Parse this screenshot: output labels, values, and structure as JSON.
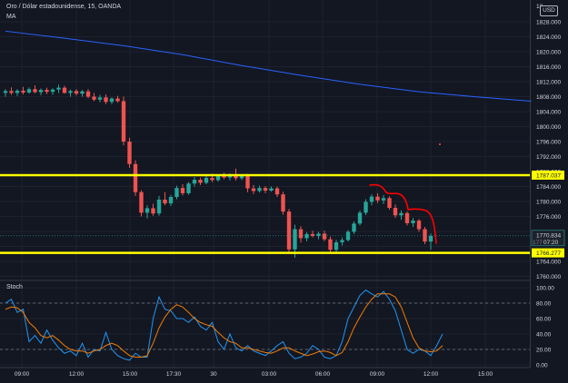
{
  "header": {
    "symbol_title": "Oro / Dólar estadounidense, 15, OANDA",
    "ma_label": "MA",
    "currency_button": "USD",
    "top_clipped_label": "18"
  },
  "stoch_panel": {
    "label": "Stoch"
  },
  "price_tags": {
    "upper_line": "1787.037",
    "current_price": "1770.834",
    "countdown": "07:20",
    "countdown_prefix": "177",
    "lower_line": "1766.277"
  },
  "colors": {
    "background": "#131722",
    "bull": "#26a69a",
    "bear": "#ef5350",
    "ma": "#2962ff",
    "stoch_k": "#2196f3",
    "stoch_d": "#f57c00",
    "level_line": "#ffff00",
    "hand_drawn": "#ff0000"
  },
  "chart_data": [
    {
      "type": "candlestick",
      "title": "Oro / Dólar estadounidense, 15, OANDA",
      "ylim": [
        1760,
        1832
      ],
      "y_ticks": [
        "1828.000",
        "1824.000",
        "1820.000",
        "1816.000",
        "1812.000",
        "1808.000",
        "1804.000",
        "1800.000",
        "1796.000",
        "1792.000",
        "1788.000",
        "1784.000",
        "1780.000",
        "1776.000",
        "1764.000",
        "1760.000"
      ],
      "x_ticks": [
        "09:00",
        "12:00",
        "15:00",
        "17:30",
        "30",
        "03:00",
        "06:00",
        "09:00",
        "12:00",
        "15:00"
      ],
      "horizontal_levels": [
        1787.037,
        1766.277
      ],
      "current_price": 1770.834,
      "ma_series": {
        "name": "MA",
        "points": [
          [
            0,
            1825.5
          ],
          [
            10,
            1823.6
          ],
          [
            20,
            1821.6
          ],
          [
            30,
            1819.2
          ],
          [
            40,
            1816.3
          ],
          [
            50,
            1813.7
          ],
          [
            60,
            1811.3
          ],
          [
            70,
            1809.3
          ],
          [
            80,
            1807.9
          ],
          [
            89,
            1806.8
          ]
        ]
      },
      "candles": [
        {
          "o": 1809.0,
          "h": 1810.0,
          "l": 1808.0,
          "c": 1809.5
        },
        {
          "o": 1809.5,
          "h": 1810.5,
          "l": 1808.5,
          "c": 1809.0
        },
        {
          "o": 1809.0,
          "h": 1810.0,
          "l": 1808.2,
          "c": 1809.6
        },
        {
          "o": 1809.6,
          "h": 1810.6,
          "l": 1808.6,
          "c": 1809.1
        },
        {
          "o": 1809.1,
          "h": 1810.5,
          "l": 1808.8,
          "c": 1810.0
        },
        {
          "o": 1810.0,
          "h": 1811.0,
          "l": 1808.9,
          "c": 1809.2
        },
        {
          "o": 1809.2,
          "h": 1810.2,
          "l": 1808.4,
          "c": 1809.8
        },
        {
          "o": 1809.8,
          "h": 1810.4,
          "l": 1808.7,
          "c": 1809.3
        },
        {
          "o": 1809.3,
          "h": 1810.2,
          "l": 1808.5,
          "c": 1809.9
        },
        {
          "o": 1809.9,
          "h": 1811.2,
          "l": 1809.0,
          "c": 1810.4
        },
        {
          "o": 1810.4,
          "h": 1810.9,
          "l": 1808.8,
          "c": 1809.0
        },
        {
          "o": 1809.0,
          "h": 1809.9,
          "l": 1808.0,
          "c": 1809.5
        },
        {
          "o": 1809.5,
          "h": 1810.0,
          "l": 1808.3,
          "c": 1808.8
        },
        {
          "o": 1808.8,
          "h": 1809.8,
          "l": 1808.0,
          "c": 1809.4
        },
        {
          "o": 1809.4,
          "h": 1810.0,
          "l": 1807.6,
          "c": 1808.0
        },
        {
          "o": 1808.0,
          "h": 1809.0,
          "l": 1806.8,
          "c": 1807.2
        },
        {
          "o": 1807.2,
          "h": 1808.5,
          "l": 1806.5,
          "c": 1807.8
        },
        {
          "o": 1807.8,
          "h": 1808.6,
          "l": 1806.0,
          "c": 1806.6
        },
        {
          "o": 1806.6,
          "h": 1807.8,
          "l": 1806.0,
          "c": 1807.5
        },
        {
          "o": 1807.5,
          "h": 1808.2,
          "l": 1806.4,
          "c": 1806.8
        },
        {
          "o": 1806.8,
          "h": 1808.0,
          "l": 1795.0,
          "c": 1796.0
        },
        {
          "o": 1796.0,
          "h": 1797.0,
          "l": 1789.0,
          "c": 1790.0
        },
        {
          "o": 1790.0,
          "h": 1791.0,
          "l": 1781.5,
          "c": 1782.5
        },
        {
          "o": 1782.5,
          "h": 1783.0,
          "l": 1776.0,
          "c": 1777.0
        },
        {
          "o": 1777.0,
          "h": 1779.0,
          "l": 1775.5,
          "c": 1778.2
        },
        {
          "o": 1778.2,
          "h": 1779.4,
          "l": 1776.2,
          "c": 1776.8
        },
        {
          "o": 1776.8,
          "h": 1781.5,
          "l": 1776.2,
          "c": 1780.5
        },
        {
          "o": 1780.5,
          "h": 1782.5,
          "l": 1779.0,
          "c": 1779.5
        },
        {
          "o": 1779.5,
          "h": 1781.8,
          "l": 1778.8,
          "c": 1781.2
        },
        {
          "o": 1781.2,
          "h": 1784.2,
          "l": 1780.6,
          "c": 1783.6
        },
        {
          "o": 1783.6,
          "h": 1784.6,
          "l": 1781.6,
          "c": 1782.2
        },
        {
          "o": 1782.2,
          "h": 1785.2,
          "l": 1781.8,
          "c": 1784.8
        },
        {
          "o": 1784.8,
          "h": 1786.5,
          "l": 1784.0,
          "c": 1785.8
        },
        {
          "o": 1785.8,
          "h": 1786.4,
          "l": 1784.4,
          "c": 1785.0
        },
        {
          "o": 1785.0,
          "h": 1786.8,
          "l": 1784.6,
          "c": 1786.3
        },
        {
          "o": 1786.3,
          "h": 1787.4,
          "l": 1785.2,
          "c": 1785.7
        },
        {
          "o": 1785.7,
          "h": 1787.2,
          "l": 1785.3,
          "c": 1786.8
        },
        {
          "o": 1786.8,
          "h": 1787.7,
          "l": 1785.9,
          "c": 1786.4
        },
        {
          "o": 1786.4,
          "h": 1787.5,
          "l": 1785.6,
          "c": 1787.0
        },
        {
          "o": 1787.0,
          "h": 1788.8,
          "l": 1785.6,
          "c": 1786.2
        },
        {
          "o": 1786.2,
          "h": 1787.3,
          "l": 1785.7,
          "c": 1786.9
        },
        {
          "o": 1786.9,
          "h": 1787.4,
          "l": 1782.5,
          "c": 1783.5
        },
        {
          "o": 1783.5,
          "h": 1784.4,
          "l": 1782.0,
          "c": 1782.8
        },
        {
          "o": 1782.8,
          "h": 1784.2,
          "l": 1782.4,
          "c": 1783.6
        },
        {
          "o": 1783.6,
          "h": 1784.1,
          "l": 1782.2,
          "c": 1782.9
        },
        {
          "o": 1782.9,
          "h": 1784.0,
          "l": 1782.6,
          "c": 1783.5
        },
        {
          "o": 1783.5,
          "h": 1784.0,
          "l": 1781.2,
          "c": 1781.9
        },
        {
          "o": 1781.9,
          "h": 1782.6,
          "l": 1776.5,
          "c": 1777.3
        },
        {
          "o": 1777.3,
          "h": 1778.0,
          "l": 1766.5,
          "c": 1767.2
        },
        {
          "o": 1767.2,
          "h": 1773.8,
          "l": 1765.0,
          "c": 1772.6
        },
        {
          "o": 1772.6,
          "h": 1773.4,
          "l": 1769.0,
          "c": 1770.2
        },
        {
          "o": 1770.2,
          "h": 1771.8,
          "l": 1769.4,
          "c": 1771.3
        },
        {
          "o": 1771.3,
          "h": 1772.2,
          "l": 1770.4,
          "c": 1770.8
        },
        {
          "o": 1770.8,
          "h": 1771.9,
          "l": 1769.9,
          "c": 1771.4
        },
        {
          "o": 1771.4,
          "h": 1772.2,
          "l": 1769.4,
          "c": 1769.9
        },
        {
          "o": 1769.9,
          "h": 1770.6,
          "l": 1766.4,
          "c": 1767.1
        },
        {
          "o": 1767.1,
          "h": 1769.8,
          "l": 1766.3,
          "c": 1769.1
        },
        {
          "o": 1769.1,
          "h": 1770.4,
          "l": 1768.2,
          "c": 1769.7
        },
        {
          "o": 1769.7,
          "h": 1772.4,
          "l": 1769.3,
          "c": 1771.9
        },
        {
          "o": 1771.9,
          "h": 1774.7,
          "l": 1771.3,
          "c": 1774.1
        },
        {
          "o": 1774.1,
          "h": 1777.6,
          "l": 1773.6,
          "c": 1777.0
        },
        {
          "o": 1777.0,
          "h": 1780.6,
          "l": 1776.4,
          "c": 1779.9
        },
        {
          "o": 1779.9,
          "h": 1781.9,
          "l": 1779.0,
          "c": 1781.3
        },
        {
          "o": 1781.3,
          "h": 1782.2,
          "l": 1779.6,
          "c": 1780.3
        },
        {
          "o": 1780.3,
          "h": 1781.7,
          "l": 1779.3,
          "c": 1780.9
        },
        {
          "o": 1780.9,
          "h": 1781.4,
          "l": 1777.8,
          "c": 1778.3
        },
        {
          "o": 1778.3,
          "h": 1779.2,
          "l": 1775.6,
          "c": 1776.3
        },
        {
          "o": 1776.3,
          "h": 1777.6,
          "l": 1775.1,
          "c": 1776.9
        },
        {
          "o": 1776.9,
          "h": 1777.3,
          "l": 1773.6,
          "c": 1774.2
        },
        {
          "o": 1774.2,
          "h": 1775.6,
          "l": 1773.2,
          "c": 1774.9
        },
        {
          "o": 1774.9,
          "h": 1775.3,
          "l": 1771.9,
          "c": 1772.6
        },
        {
          "o": 1772.6,
          "h": 1773.2,
          "l": 1768.6,
          "c": 1769.3
        },
        {
          "o": 1769.3,
          "h": 1771.5,
          "l": 1767.1,
          "c": 1770.8
        }
      ]
    },
    {
      "type": "line",
      "title": "Stoch",
      "ylim": [
        0,
        100
      ],
      "y_ticks": [
        "100.00",
        "80.00",
        "60.00",
        "40.00",
        "20.00",
        "0.00"
      ],
      "reference_levels": [
        80,
        20
      ],
      "series": [
        {
          "name": "%K",
          "values": [
            80,
            85,
            68,
            72,
            30,
            38,
            28,
            45,
            32,
            22,
            15,
            18,
            12,
            28,
            10,
            20,
            18,
            42,
            20,
            12,
            8,
            6,
            15,
            10,
            10,
            60,
            88,
            72,
            70,
            60,
            60,
            55,
            62,
            50,
            45,
            55,
            30,
            20,
            40,
            22,
            18,
            25,
            18,
            15,
            12,
            18,
            25,
            30,
            15,
            8,
            10,
            15,
            25,
            20,
            10,
            8,
            12,
            30,
            60,
            75,
            90,
            97,
            92,
            88,
            95,
            85,
            70,
            45,
            20,
            15,
            20,
            18,
            12,
            25,
            40
          ]
        },
        {
          "name": "%D",
          "values": [
            72,
            75,
            74,
            68,
            55,
            48,
            38,
            35,
            38,
            32,
            25,
            20,
            18,
            18,
            15,
            18,
            20,
            25,
            28,
            25,
            18,
            12,
            10,
            10,
            12,
            28,
            48,
            62,
            72,
            78,
            75,
            68,
            60,
            55,
            52,
            50,
            42,
            35,
            30,
            28,
            22,
            22,
            20,
            18,
            16,
            15,
            18,
            22,
            22,
            18,
            15,
            12,
            14,
            17,
            18,
            16,
            12,
            16,
            30,
            48,
            62,
            75,
            85,
            92,
            92,
            92,
            88,
            75,
            55,
            35,
            22,
            18,
            17,
            18,
            25
          ]
        }
      ]
    }
  ]
}
